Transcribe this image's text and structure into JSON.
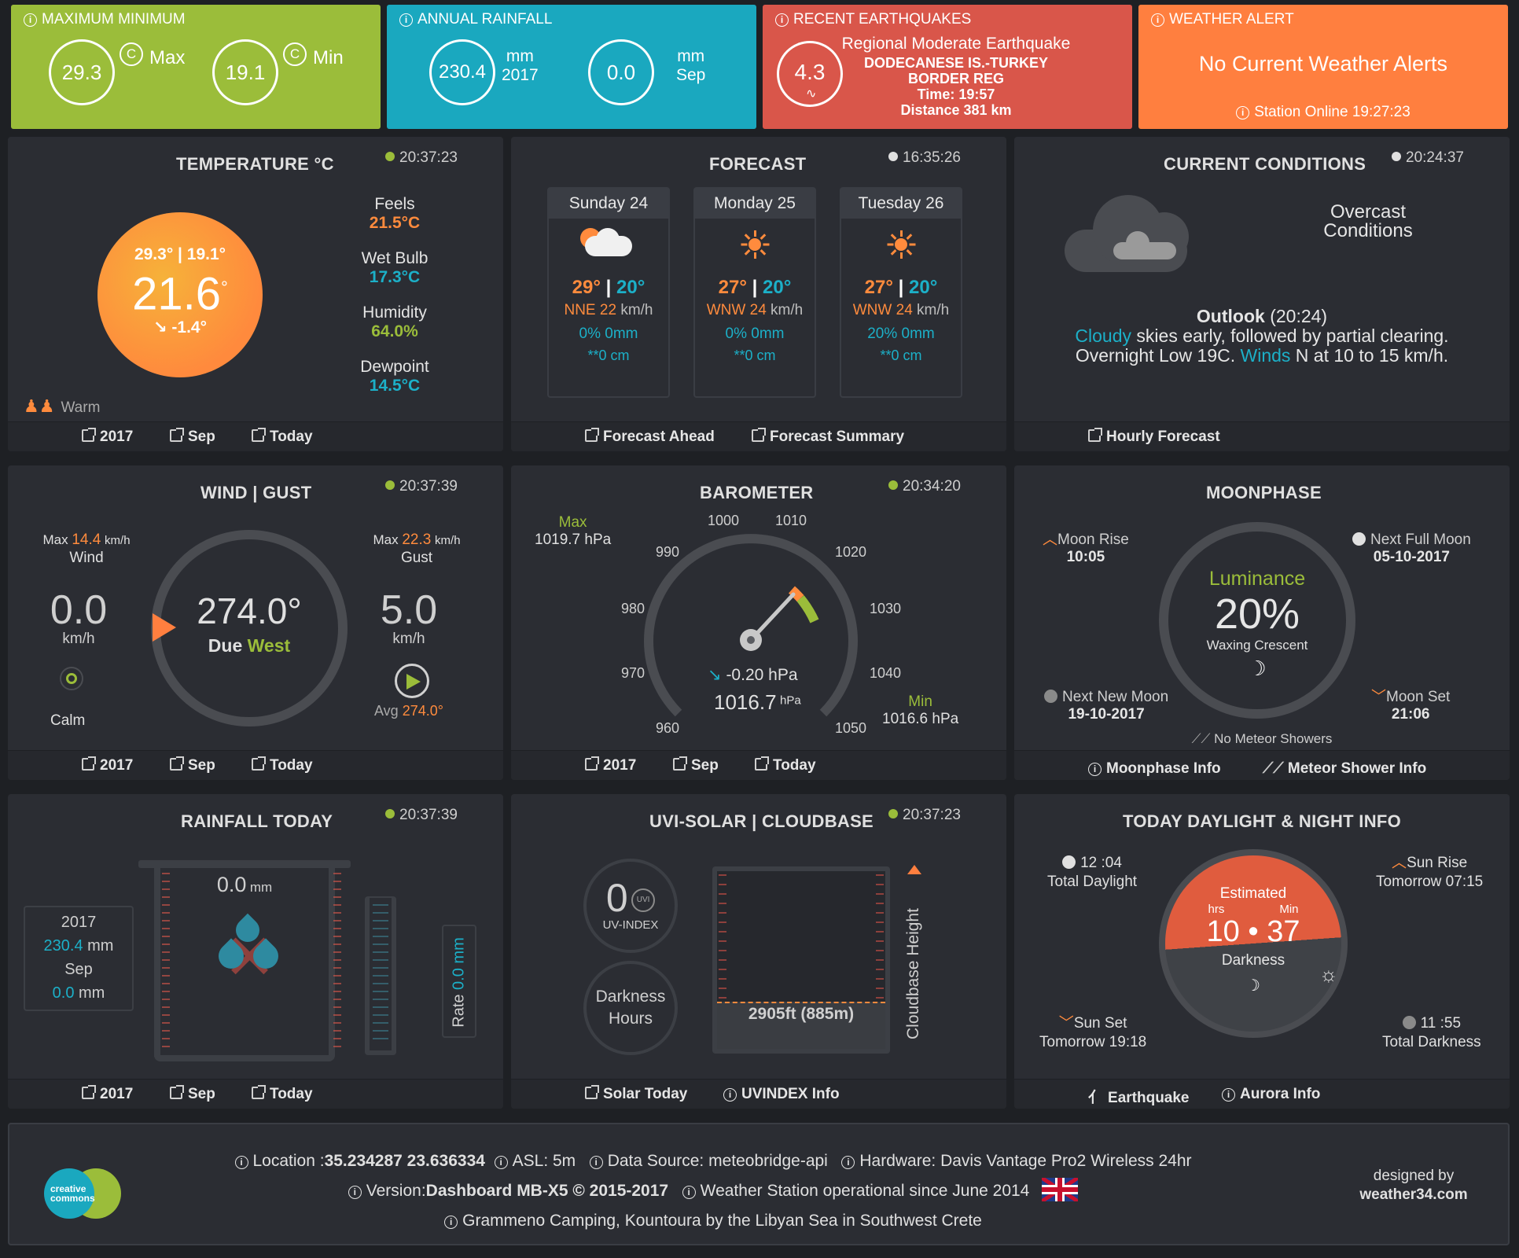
{
  "top": {
    "maxmin": {
      "title": "MAXIMUM MINIMUM",
      "max_value": "29.3",
      "max_label": "Max",
      "min_value": "19.1",
      "min_label": "Min",
      "unit_symbol": "C",
      "color": "#9bbd3a"
    },
    "rainfall": {
      "title": "ANNUAL RAINFALL",
      "year_value": "230.4",
      "year_unit": "mm",
      "year_label": "2017",
      "month_value": "0.0",
      "month_unit": "mm",
      "month_label": "Sep",
      "color": "#1aa8bf"
    },
    "quake": {
      "title": "RECENT EARTHQUAKES",
      "magnitude": "4.3",
      "headline": "Regional Moderate Earthquake",
      "region_line1": "DODECANESE IS.-TURKEY",
      "region_line2": "BORDER REG",
      "time": "Time: 19:57",
      "distance": "Distance  381 km",
      "color": "#d9564a"
    },
    "alert": {
      "title": "WEATHER ALERT",
      "message": "No Current Weather Alerts",
      "status": "Station Online 19:27:23",
      "color": "#ff7f3f"
    }
  },
  "temperature": {
    "title": "TEMPERATURE °C",
    "time": "20:37:23",
    "hilo": "29.3° | 19.1°",
    "current": "21.6",
    "deg": "°",
    "trend": "-1.4°",
    "feels_label": "Feels",
    "feels": "21.5°C",
    "wetbulb_label": "Wet Bulb",
    "wetbulb": "17.3°C",
    "humidity_label": "Humidity",
    "humidity": "64.0%",
    "dewpoint_label": "Dewpoint",
    "dewpoint": "14.5°C",
    "status": "Warm",
    "links": [
      "2017",
      "Sep",
      "Today"
    ]
  },
  "forecast": {
    "title": "FORECAST",
    "time": "16:35:26",
    "days": [
      {
        "day": "Sunday 24",
        "icon": "partly-cloudy-icon",
        "hi": "29°",
        "lo": "20°",
        "dir": "NNE",
        "speed": "22",
        "unit": "km/h",
        "rain": "0% 0mm",
        "snow": "**0 cm"
      },
      {
        "day": "Monday 25",
        "icon": "sun-icon",
        "hi": "27°",
        "lo": "20°",
        "dir": "WNW",
        "speed": "24",
        "unit": "km/h",
        "rain": "0% 0mm",
        "snow": "**0 cm"
      },
      {
        "day": "Tuesday 26",
        "icon": "sun-icon",
        "hi": "27°",
        "lo": "20°",
        "dir": "WNW",
        "speed": "24",
        "unit": "km/h",
        "rain": "20% 0mm",
        "snow": "**0 cm"
      }
    ],
    "links": [
      "Forecast Ahead",
      "Forecast Summary"
    ]
  },
  "conditions": {
    "title": "CURRENT CONDITIONS",
    "time": "20:24:37",
    "summary_line1": "Overcast",
    "summary_line2": "Conditions",
    "outlook_label": "Outlook",
    "outlook_time": "(20:24)",
    "outlook_w1": "Cloudy",
    "outlook_t1": " skies early, followed by partial clearing.",
    "outlook_t2": "Overnight Low 19C. ",
    "outlook_w2": "Winds",
    "outlook_t3": " N at 10 to 15 km/h.",
    "links": [
      "Hourly Forecast"
    ]
  },
  "wind": {
    "title": "WIND | GUST",
    "time": "20:37:39",
    "max_wind_label": "Max",
    "max_wind": "14.4",
    "max_wind_unit": "km/h",
    "wind_label": "Wind",
    "max_gust_label": "Max",
    "max_gust": "22.3",
    "max_gust_unit": "km/h",
    "gust_label": "Gust",
    "wind_speed": "0.0",
    "wind_unit": "km/h",
    "gust_speed": "5.0",
    "gust_unit": "km/h",
    "direction": "274.0°",
    "dir_prefix": "Due",
    "dir_name": "West",
    "calm": "Calm",
    "avg_label": "Avg",
    "avg": "274.0°",
    "links": [
      "2017",
      "Sep",
      "Today"
    ]
  },
  "barometer": {
    "title": "BAROMETER",
    "time": "20:34:20",
    "max_label": "Max",
    "max": "1019.7 hPa",
    "min_label": "Min",
    "min": "1016.6 hPa",
    "ticks": [
      "960",
      "970",
      "980",
      "990",
      "1000",
      "1010",
      "1020",
      "1030",
      "1040",
      "1050"
    ],
    "trend": "-0.20 hPa",
    "current": "1016.7",
    "unit": "hPa",
    "links": [
      "2017",
      "Sep",
      "Today"
    ]
  },
  "moon": {
    "title": "MOONPHASE",
    "rise_label": "Moon Rise",
    "rise": "10:05",
    "full_label": "Next Full Moon",
    "full": "05-10-2017",
    "new_label": "Next New Moon",
    "new": "19-10-2017",
    "set_label": "Moon Set",
    "set": "21:06",
    "luminance_label": "Luminance",
    "luminance": "20%",
    "phase": "Waxing Crescent",
    "meteor": "No Meteor Showers",
    "links": [
      "Moonphase Info",
      "Meteor Shower Info"
    ]
  },
  "rain": {
    "title": "RAINFALL TODAY",
    "time": "20:37:39",
    "today": "0.0",
    "today_unit": "mm",
    "year_label": "2017",
    "year": "230.4",
    "year_unit": "mm",
    "month_label": "Sep",
    "month": "0.0",
    "month_unit": "mm",
    "rate_label": "Rate",
    "rate": "0.0 mm",
    "links": [
      "2017",
      "Sep",
      "Today"
    ]
  },
  "uvi": {
    "title": "UVI-SOLAR | CLOUDBASE",
    "time": "20:37:23",
    "uv": "0",
    "uv_badge": "UVI",
    "uv_label": "UV-INDEX",
    "dark_line1": "Darkness",
    "dark_line2": "Hours",
    "cloudbase": "2905ft (885m)",
    "cloudbase_label": "Cloudbase Height",
    "links": [
      "Solar Today",
      "UVINDEX Info"
    ]
  },
  "daylight": {
    "title": "TODAY DAYLIGHT & NIGHT INFO",
    "daylight_time": "12 :04",
    "daylight_label": "Total Daylight",
    "sunrise_label": "Sun Rise",
    "sunrise": "Tomorrow 07:15",
    "sunset_label": "Sun Set",
    "sunset": "Tomorrow 19:18",
    "darkness_time": "11 :55",
    "darkness_label": "Total Darkness",
    "estimated": "Estimated",
    "hrs": "hrs",
    "min": "Min",
    "hours": "10",
    "minutes": "37",
    "darkness": "Darkness",
    "links": [
      "Earthquake",
      "Aurora Info"
    ]
  },
  "footer": {
    "location_label": "Location :",
    "location": "35.234287 23.636334",
    "asl": "ASL: 5m",
    "source": "Data Source: meteobridge-api",
    "hardware": "Hardware: Davis Vantage Pro2 Wireless 24hr",
    "version_label": "Version:",
    "version": "Dashboard MB-X5 © 2015-2017",
    "since": "Weather Station operational since June 2014",
    "place": "Grammeno Camping, Kountoura by the Libyan Sea in Southwest Crete",
    "cc1": "creative",
    "cc2": "commons",
    "designed_by": "designed by",
    "designer": "weather34.com"
  }
}
